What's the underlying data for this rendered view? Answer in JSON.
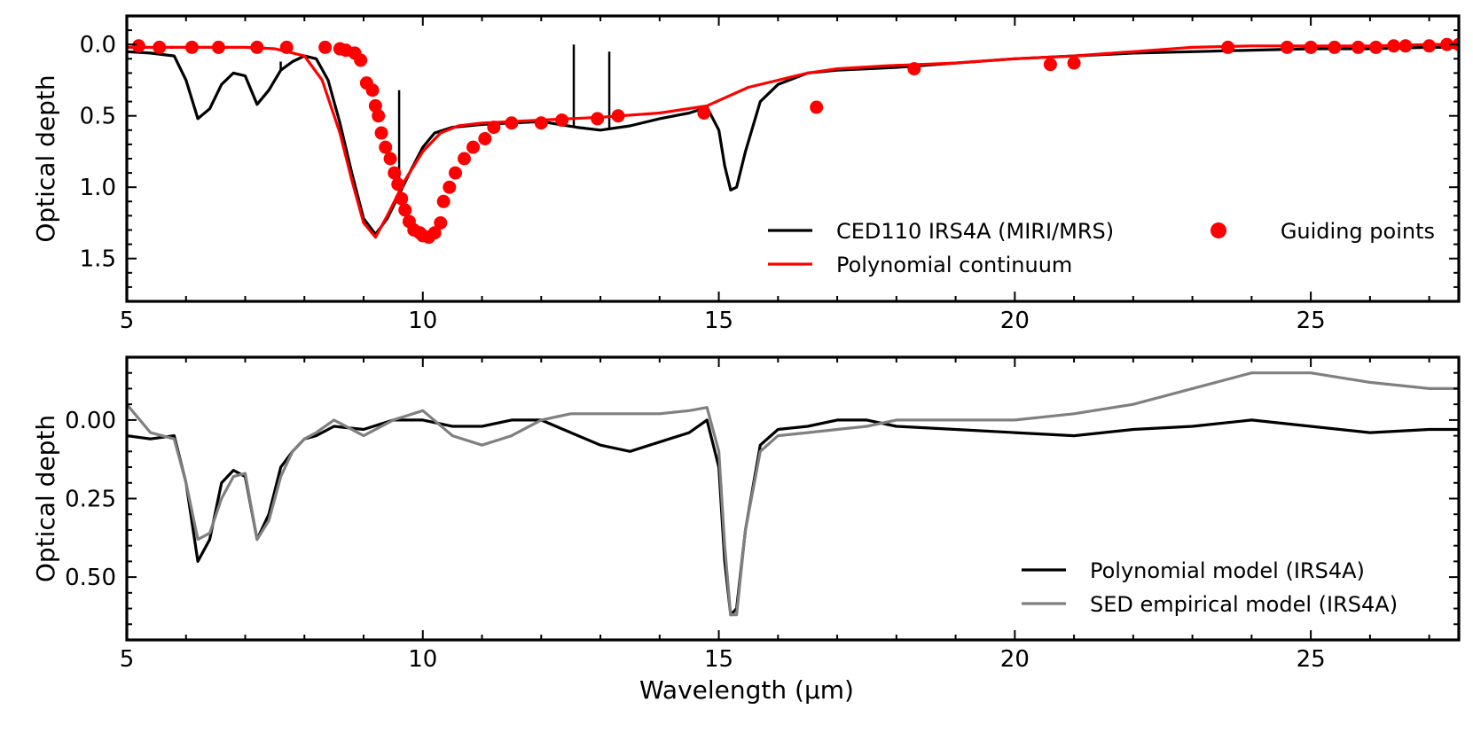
{
  "figure": {
    "xlabel": "Wavelength (μm)"
  },
  "chart_data": [
    {
      "type": "line",
      "panel": "top",
      "xlabel": "",
      "ylabel": "Optical depth",
      "xlim": [
        5,
        27.5
      ],
      "ylim": [
        1.8,
        -0.2
      ],
      "y_inverted": true,
      "x_ticks": [
        5,
        10,
        15,
        20,
        25
      ],
      "y_ticks": [
        0.0,
        0.5,
        1.0,
        1.5
      ],
      "y_tick_labels": [
        "0.0",
        "0.5",
        "1.0",
        "1.5"
      ],
      "legend_placement": "lower-right",
      "grid": false,
      "series": [
        {
          "name": "CED110 IRS4A (MIRI/MRS)",
          "kind": "line",
          "color": "#000000",
          "x": [
            5.0,
            5.4,
            5.8,
            6.0,
            6.2,
            6.4,
            6.6,
            6.8,
            7.0,
            7.2,
            7.4,
            7.6,
            7.8,
            8.0,
            8.2,
            8.4,
            8.6,
            8.8,
            9.0,
            9.2,
            9.4,
            9.6,
            9.8,
            10.0,
            10.2,
            10.5,
            11.0,
            11.5,
            12.0,
            12.3,
            12.6,
            13.0,
            13.5,
            14.0,
            14.5,
            14.8,
            15.0,
            15.1,
            15.2,
            15.3,
            15.45,
            15.7,
            16.0,
            16.5,
            17.0,
            17.5,
            18.0,
            19.0,
            20.0,
            21.0,
            22.0,
            23.0,
            24.0,
            25.0,
            26.0,
            27.0,
            27.5
          ],
          "y": [
            0.05,
            0.06,
            0.08,
            0.25,
            0.52,
            0.45,
            0.28,
            0.2,
            0.22,
            0.42,
            0.32,
            0.18,
            0.12,
            0.08,
            0.1,
            0.25,
            0.55,
            0.9,
            1.22,
            1.33,
            1.22,
            1.05,
            0.88,
            0.72,
            0.62,
            0.58,
            0.56,
            0.55,
            0.54,
            0.56,
            0.58,
            0.6,
            0.57,
            0.52,
            0.48,
            0.44,
            0.6,
            0.85,
            1.02,
            1.0,
            0.75,
            0.4,
            0.28,
            0.2,
            0.18,
            0.17,
            0.16,
            0.13,
            0.1,
            0.08,
            0.06,
            0.05,
            0.04,
            0.03,
            0.03,
            0.02,
            0.02
          ],
          "spikes": [
            {
              "x": 7.6,
              "y_tip": 0.12
            },
            {
              "x": 9.6,
              "y_tip": 0.32
            },
            {
              "x": 12.55,
              "y_tip": 0.0
            },
            {
              "x": 13.15,
              "y_tip": 0.05
            }
          ]
        },
        {
          "name": "Polynomial continuum",
          "kind": "line",
          "color": "#ff0000",
          "x": [
            5.0,
            6.0,
            7.0,
            7.5,
            8.0,
            8.3,
            8.6,
            8.8,
            9.0,
            9.2,
            9.4,
            9.7,
            10.0,
            10.3,
            10.6,
            11.0,
            12.0,
            13.0,
            14.0,
            14.8,
            15.5,
            16.0,
            16.5,
            17.0,
            17.8,
            19.0,
            20.0,
            21.0,
            22.0,
            23.0,
            24.0,
            25.0,
            26.0,
            27.0,
            27.5
          ],
          "y": [
            0.02,
            0.02,
            0.02,
            0.03,
            0.08,
            0.25,
            0.62,
            0.95,
            1.25,
            1.35,
            1.2,
            0.95,
            0.75,
            0.62,
            0.57,
            0.55,
            0.53,
            0.51,
            0.48,
            0.43,
            0.3,
            0.25,
            0.2,
            0.17,
            0.15,
            0.13,
            0.1,
            0.08,
            0.05,
            0.02,
            0.01,
            0.01,
            0.01,
            0.0,
            0.0
          ]
        },
        {
          "name": "Guiding points",
          "kind": "scatter",
          "color": "#ff0000",
          "x": [
            5.2,
            5.55,
            6.1,
            6.55,
            7.2,
            7.7,
            8.35,
            8.6,
            8.7,
            8.85,
            8.95,
            9.05,
            9.15,
            9.2,
            9.25,
            9.3,
            9.37,
            9.45,
            9.52,
            9.58,
            9.64,
            9.7,
            9.77,
            9.85,
            9.95,
            10.0,
            10.1,
            10.2,
            10.3,
            10.35,
            10.45,
            10.55,
            10.7,
            10.85,
            11.05,
            11.2,
            11.5,
            12.0,
            12.35,
            12.95,
            13.3,
            14.75,
            16.65,
            18.3,
            20.6,
            21.0,
            23.6,
            24.6,
            25.0,
            25.4,
            25.8,
            26.1,
            26.4,
            26.6,
            27.0,
            27.3,
            27.5
          ],
          "y": [
            0.01,
            0.02,
            0.02,
            0.02,
            0.02,
            0.02,
            0.02,
            0.03,
            0.04,
            0.06,
            0.11,
            0.27,
            0.32,
            0.43,
            0.5,
            0.62,
            0.72,
            0.8,
            0.9,
            0.98,
            1.08,
            1.16,
            1.24,
            1.3,
            1.32,
            1.34,
            1.35,
            1.32,
            1.25,
            1.1,
            1.0,
            0.9,
            0.8,
            0.72,
            0.66,
            0.58,
            0.55,
            0.55,
            0.53,
            0.52,
            0.5,
            0.48,
            0.44,
            0.17,
            0.14,
            0.13,
            0.02,
            0.02,
            0.02,
            0.02,
            0.02,
            0.02,
            0.01,
            0.01,
            0.01,
            0.0,
            0.0
          ]
        }
      ]
    },
    {
      "type": "line",
      "panel": "bottom",
      "xlabel": "Wavelength (μm)",
      "ylabel": "Optical depth",
      "xlim": [
        5,
        27.5
      ],
      "ylim": [
        0.7,
        -0.2
      ],
      "y_inverted": true,
      "x_ticks": [
        5,
        10,
        15,
        20,
        25
      ],
      "y_ticks": [
        0.0,
        0.25,
        0.5
      ],
      "y_tick_labels": [
        "0.00",
        "0.25",
        "0.50"
      ],
      "legend_placement": "lower-right",
      "grid": false,
      "series": [
        {
          "name": "Polynomial model (IRS4A)",
          "kind": "line",
          "color": "#000000",
          "x": [
            5.0,
            5.4,
            5.8,
            6.0,
            6.2,
            6.4,
            6.6,
            6.8,
            7.0,
            7.2,
            7.4,
            7.6,
            7.8,
            8.0,
            8.2,
            8.5,
            9.0,
            9.5,
            10.0,
            10.5,
            11.0,
            11.5,
            12.0,
            12.5,
            13.0,
            13.5,
            14.0,
            14.5,
            14.8,
            15.0,
            15.1,
            15.2,
            15.3,
            15.45,
            15.7,
            16.0,
            16.5,
            17.0,
            17.5,
            18.0,
            19.0,
            20.0,
            21.0,
            22.0,
            23.0,
            24.0,
            25.0,
            26.0,
            27.0,
            27.5
          ],
          "y": [
            0.05,
            0.06,
            0.05,
            0.2,
            0.45,
            0.38,
            0.2,
            0.16,
            0.18,
            0.38,
            0.3,
            0.15,
            0.1,
            0.06,
            0.05,
            0.02,
            0.03,
            0.0,
            0.0,
            0.02,
            0.02,
            0.0,
            0.0,
            0.04,
            0.08,
            0.1,
            0.07,
            0.04,
            0.0,
            0.15,
            0.45,
            0.62,
            0.6,
            0.35,
            0.08,
            0.03,
            0.02,
            0.0,
            0.0,
            0.02,
            0.03,
            0.04,
            0.05,
            0.03,
            0.02,
            0.0,
            0.02,
            0.04,
            0.03,
            0.03
          ]
        },
        {
          "name": "SED empirical model (IRS4A)",
          "kind": "line",
          "color": "#808080",
          "x": [
            5.0,
            5.4,
            5.8,
            6.0,
            6.2,
            6.4,
            6.6,
            6.8,
            7.0,
            7.2,
            7.4,
            7.6,
            7.8,
            8.0,
            8.2,
            8.5,
            9.0,
            9.5,
            10.0,
            10.5,
            11.0,
            11.5,
            12.0,
            12.5,
            13.0,
            13.5,
            14.0,
            14.5,
            14.8,
            15.0,
            15.1,
            15.2,
            15.3,
            15.45,
            15.7,
            16.0,
            16.5,
            17.0,
            17.5,
            18.0,
            19.0,
            20.0,
            21.0,
            22.0,
            23.0,
            24.0,
            25.0,
            26.0,
            27.0,
            27.5
          ],
          "y": [
            -0.05,
            0.04,
            0.06,
            0.2,
            0.38,
            0.36,
            0.25,
            0.18,
            0.17,
            0.38,
            0.32,
            0.18,
            0.1,
            0.06,
            0.04,
            0.0,
            0.05,
            0.0,
            -0.03,
            0.05,
            0.08,
            0.05,
            0.0,
            -0.02,
            -0.02,
            -0.02,
            -0.02,
            -0.03,
            -0.04,
            0.1,
            0.4,
            0.62,
            0.62,
            0.35,
            0.1,
            0.05,
            0.04,
            0.03,
            0.02,
            0.0,
            0.0,
            0.0,
            -0.02,
            -0.05,
            -0.1,
            -0.15,
            -0.15,
            -0.12,
            -0.1,
            -0.1
          ]
        }
      ]
    }
  ]
}
